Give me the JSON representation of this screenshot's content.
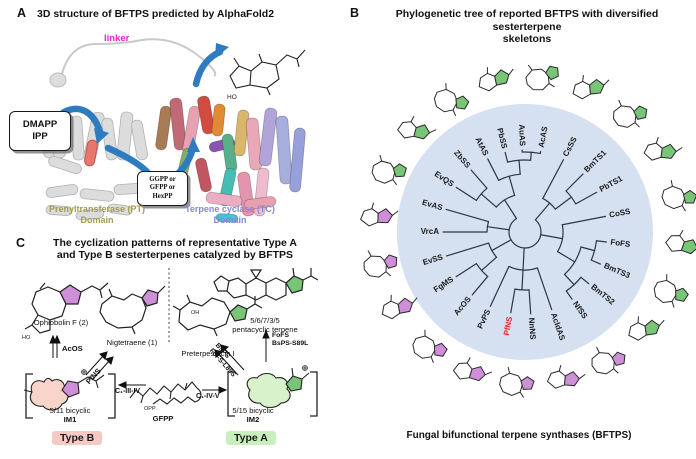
{
  "colors": {
    "accent_red": "#e8232a",
    "circle_fill": "#d5e0f1",
    "tree_line": "#2c3640",
    "type_a_bg": "#c9efbc",
    "type_b_bg": "#f7c9c4",
    "green_pent_fill": "#79c578",
    "purple_pent_fill": "#cf8fd8",
    "pink_blob": "#f8d4c9",
    "green_blob": "#d8f2cb",
    "linker_magenta": "#ee22cc",
    "pt_caption": "#a39a52",
    "tc_caption": "#8289d6",
    "arrow_blue": "#2e7bbf"
  },
  "panelA": {
    "label": "A",
    "title": "3D structure of BFTPS predicted by AlphaFold2",
    "linker": "linker",
    "substrate_line1": "DMAPP",
    "substrate_line2": "IPP",
    "product_line1": "GGPP or",
    "product_line2": "GFPP or",
    "product_line3": "HexPP",
    "ho_label": "HO",
    "pt_caption_line1": "Prenyltransferase (PT)",
    "pt_caption_line2": "Domain",
    "tc_caption_line1": "Terpene cyclase (TC)",
    "tc_caption_line2": "Domain"
  },
  "panelB": {
    "label": "B",
    "title_line1": "Phylogenetic tree of reported BFTPS with diversified sesterterpene",
    "title_line2": "skeletons",
    "caption": "Fungal bifunctional terpene synthases (BFTPS)",
    "phylo": {
      "children": [
        {
          "children": [
            {
              "name": "CsSS",
              "angle": 28
            },
            {
              "children": [
                {
                  "name": "BmTS1",
                  "angle": 45
                },
                {
                  "name": "PbTS1",
                  "angle": 61
                }
              ]
            }
          ]
        },
        {
          "children": [
            {
              "name": "CoSS",
              "angle": 79
            },
            {
              "children": [
                {
                  "children": [
                    {
                      "name": "FoFS",
                      "angle": 97
                    },
                    {
                      "name": "BmTS3",
                      "angle": 113
                    }
                  ]
                },
                {
                  "children": [
                    {
                      "name": "BmTS2",
                      "angle": 129
                    },
                    {
                      "name": "NfSS",
                      "angle": 145
                    }
                  ]
                }
              ]
            }
          ]
        },
        {
          "children": [
            {
              "name": "AcldAS",
              "angle": 161
            },
            {
              "children": [
                {
                  "name": "NnNS",
                  "angle": 176
                },
                {
                  "name": "PfNS",
                  "angle": 190,
                  "red": true
                }
              ]
            },
            {
              "name": "PvPS",
              "angle": 205
            }
          ]
        },
        {
          "children": [
            {
              "children": [
                {
                  "name": "AcOS",
                  "angle": 220
                },
                {
                  "name": "FgMS",
                  "angle": 237
                }
              ]
            },
            {
              "name": "EvSS",
              "angle": 253
            }
          ]
        },
        {
          "children": [
            {
              "name": "VrcA",
              "angle": 270
            },
            {
              "name": "EvAS",
              "angle": 286
            }
          ]
        },
        {
          "children": [
            {
              "children": [
                {
                  "name": "EvQS",
                  "angle": 303
                },
                {
                  "name": "ZbSS",
                  "angle": 319
                }
              ]
            },
            {
              "children": [
                {
                  "name": "AtAS",
                  "angle": 333
                },
                {
                  "children": [
                    {
                      "name": "PbSS",
                      "angle": 346
                    },
                    {
                      "children": [
                        {
                          "name": "AuAS",
                          "angle": 358
                        },
                        {
                          "name": "AcAS",
                          "angle": 371
                        }
                      ]
                    }
                  ]
                }
              ]
            }
          ]
        }
      ]
    }
  },
  "panelC": {
    "label": "C",
    "title_line1": "The cyclization patterns of representative Type A",
    "title_line2": "and Type B sesterterpenes catalyzed by BFTPS",
    "ophiobolin": "Ophiobolin F (2)",
    "nigtetraene": "Nigtetraene (1)",
    "preterpestacin": "Preterpestacin I",
    "pentacyclic_line1": "5/6/7/3/5",
    "pentacyclic_line2": "pentacyclic terpene",
    "acos": "AcOS",
    "pfns": "PfNS",
    "fofs": "FoFS",
    "bsps_mut": "BsPS-S89L",
    "bsps": "BsPS",
    "fofs_mut": "FoFS-L89S",
    "c1_iii_iv": "C₁-III-IV",
    "c1_iv_v": "C₁-IV-V",
    "im1_line1": "5/11 bicyclic",
    "im1_line2": "IM1",
    "im2_line1": "5/15 bicyclic",
    "im2_line2": "IM2",
    "gfpp": "GFPP",
    "opp": "OPP",
    "ho": "HO",
    "oh": "OH",
    "type_b": "Type B",
    "type_a": "Type A"
  }
}
